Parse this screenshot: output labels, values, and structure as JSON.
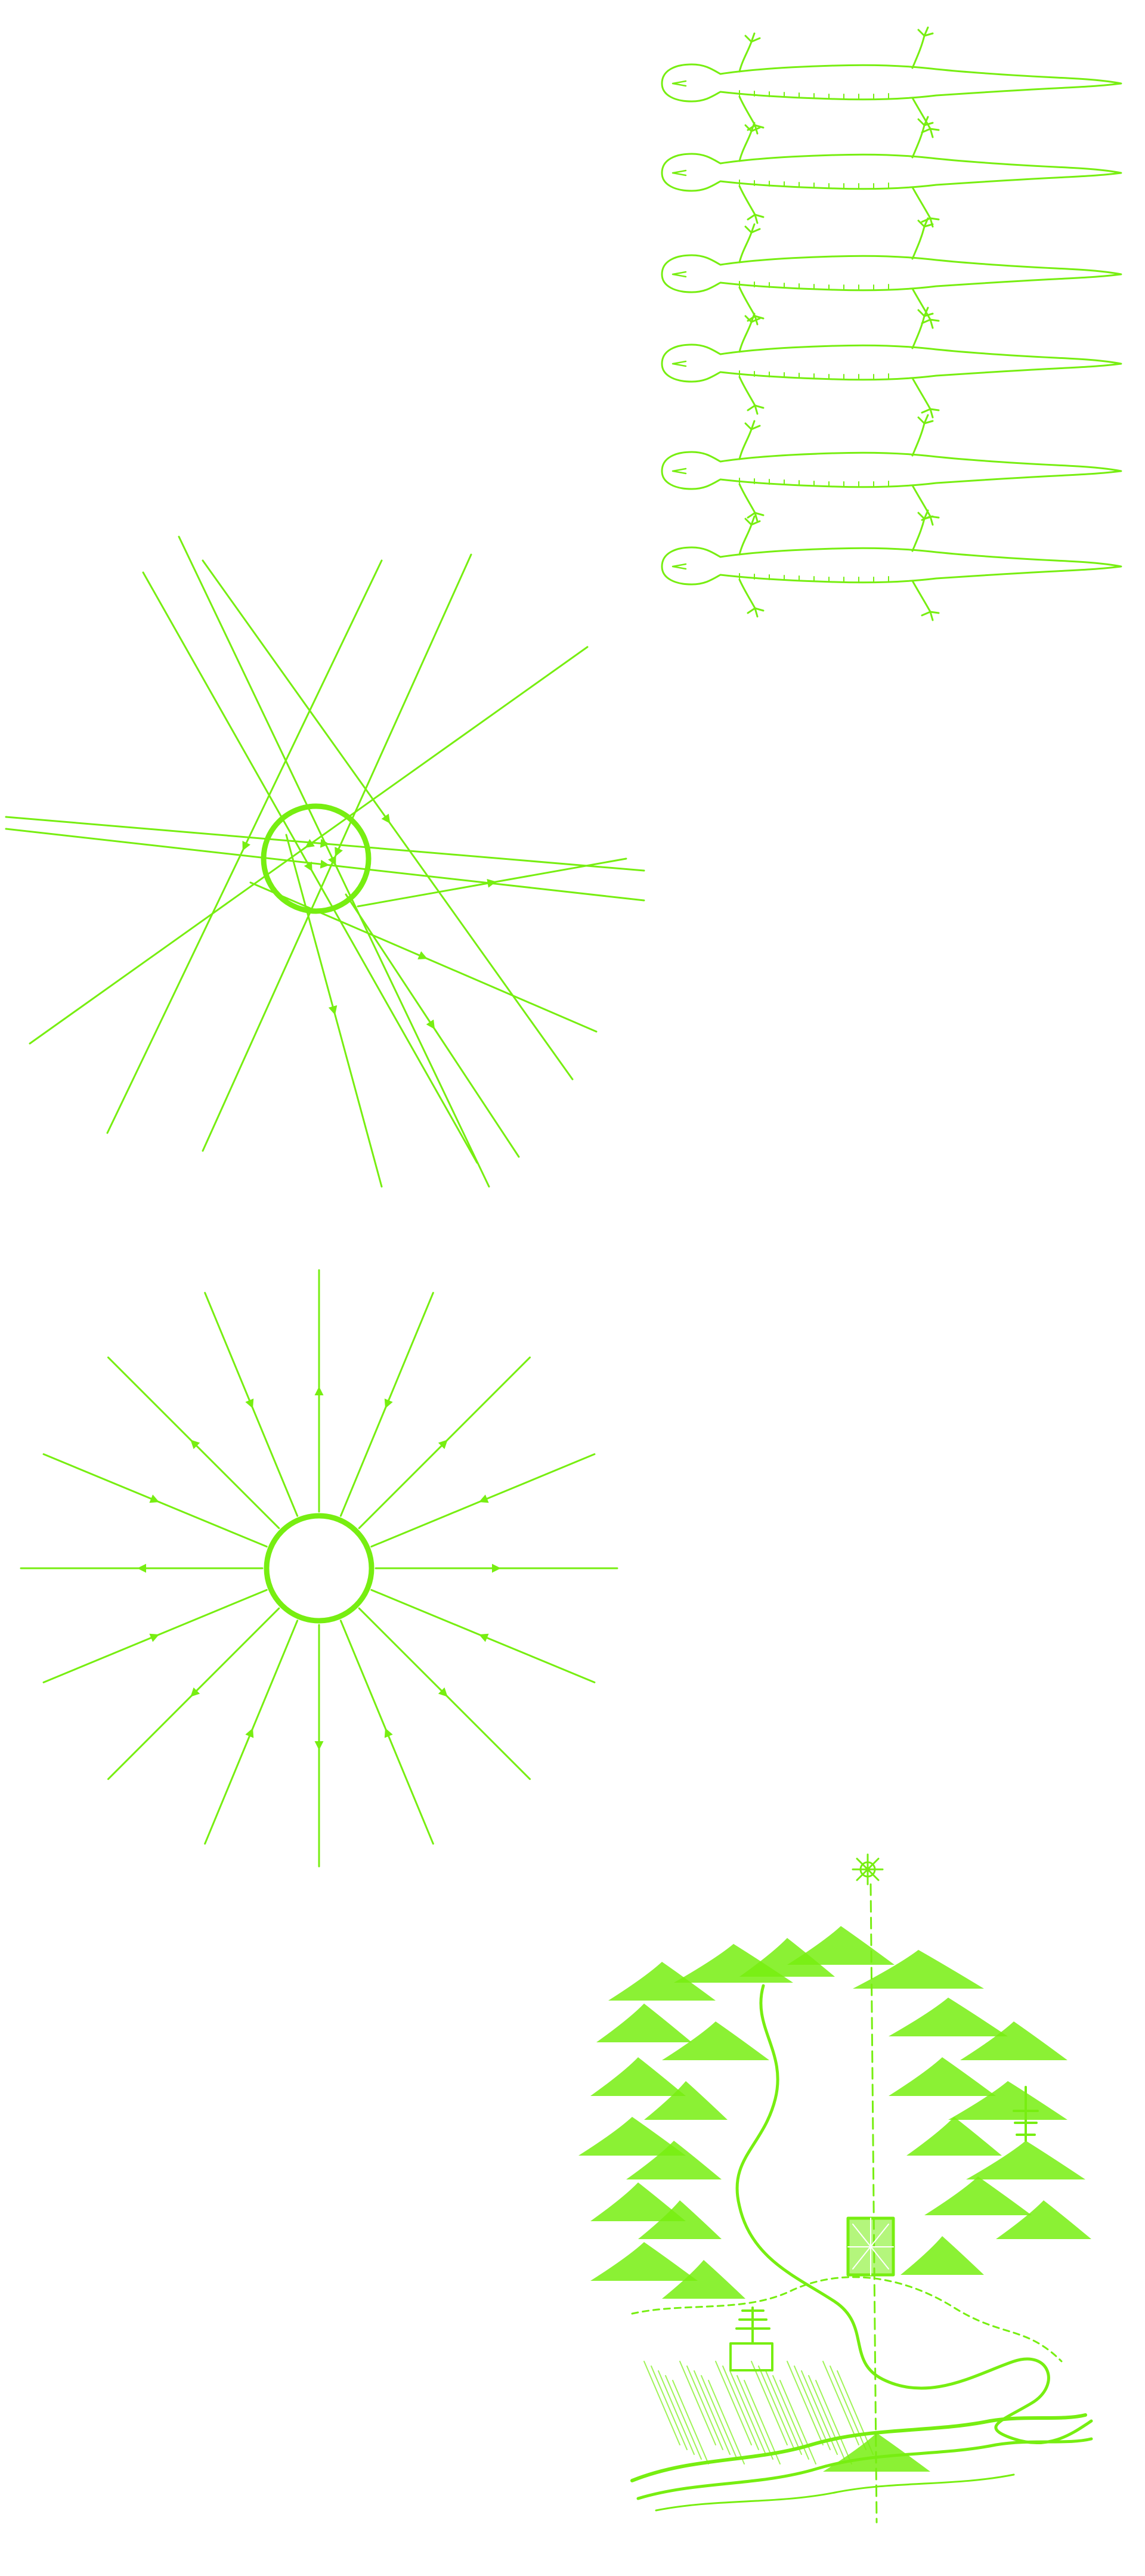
{
  "palette": {
    "ink": "#77ee11",
    "background": "#ffffff"
  },
  "panels": {
    "salamanders": {
      "count": 6,
      "icon": "salamander-icon"
    },
    "scattered_rays": {
      "ray_count": 12,
      "shows_core": true,
      "icon": "scattered-sunburst-icon"
    },
    "radial_rays": {
      "ray_count": 16,
      "shows_core": true,
      "icon": "radial-sunburst-icon"
    },
    "landscape": {
      "icon": "mountain-landscape-map-icon"
    }
  }
}
